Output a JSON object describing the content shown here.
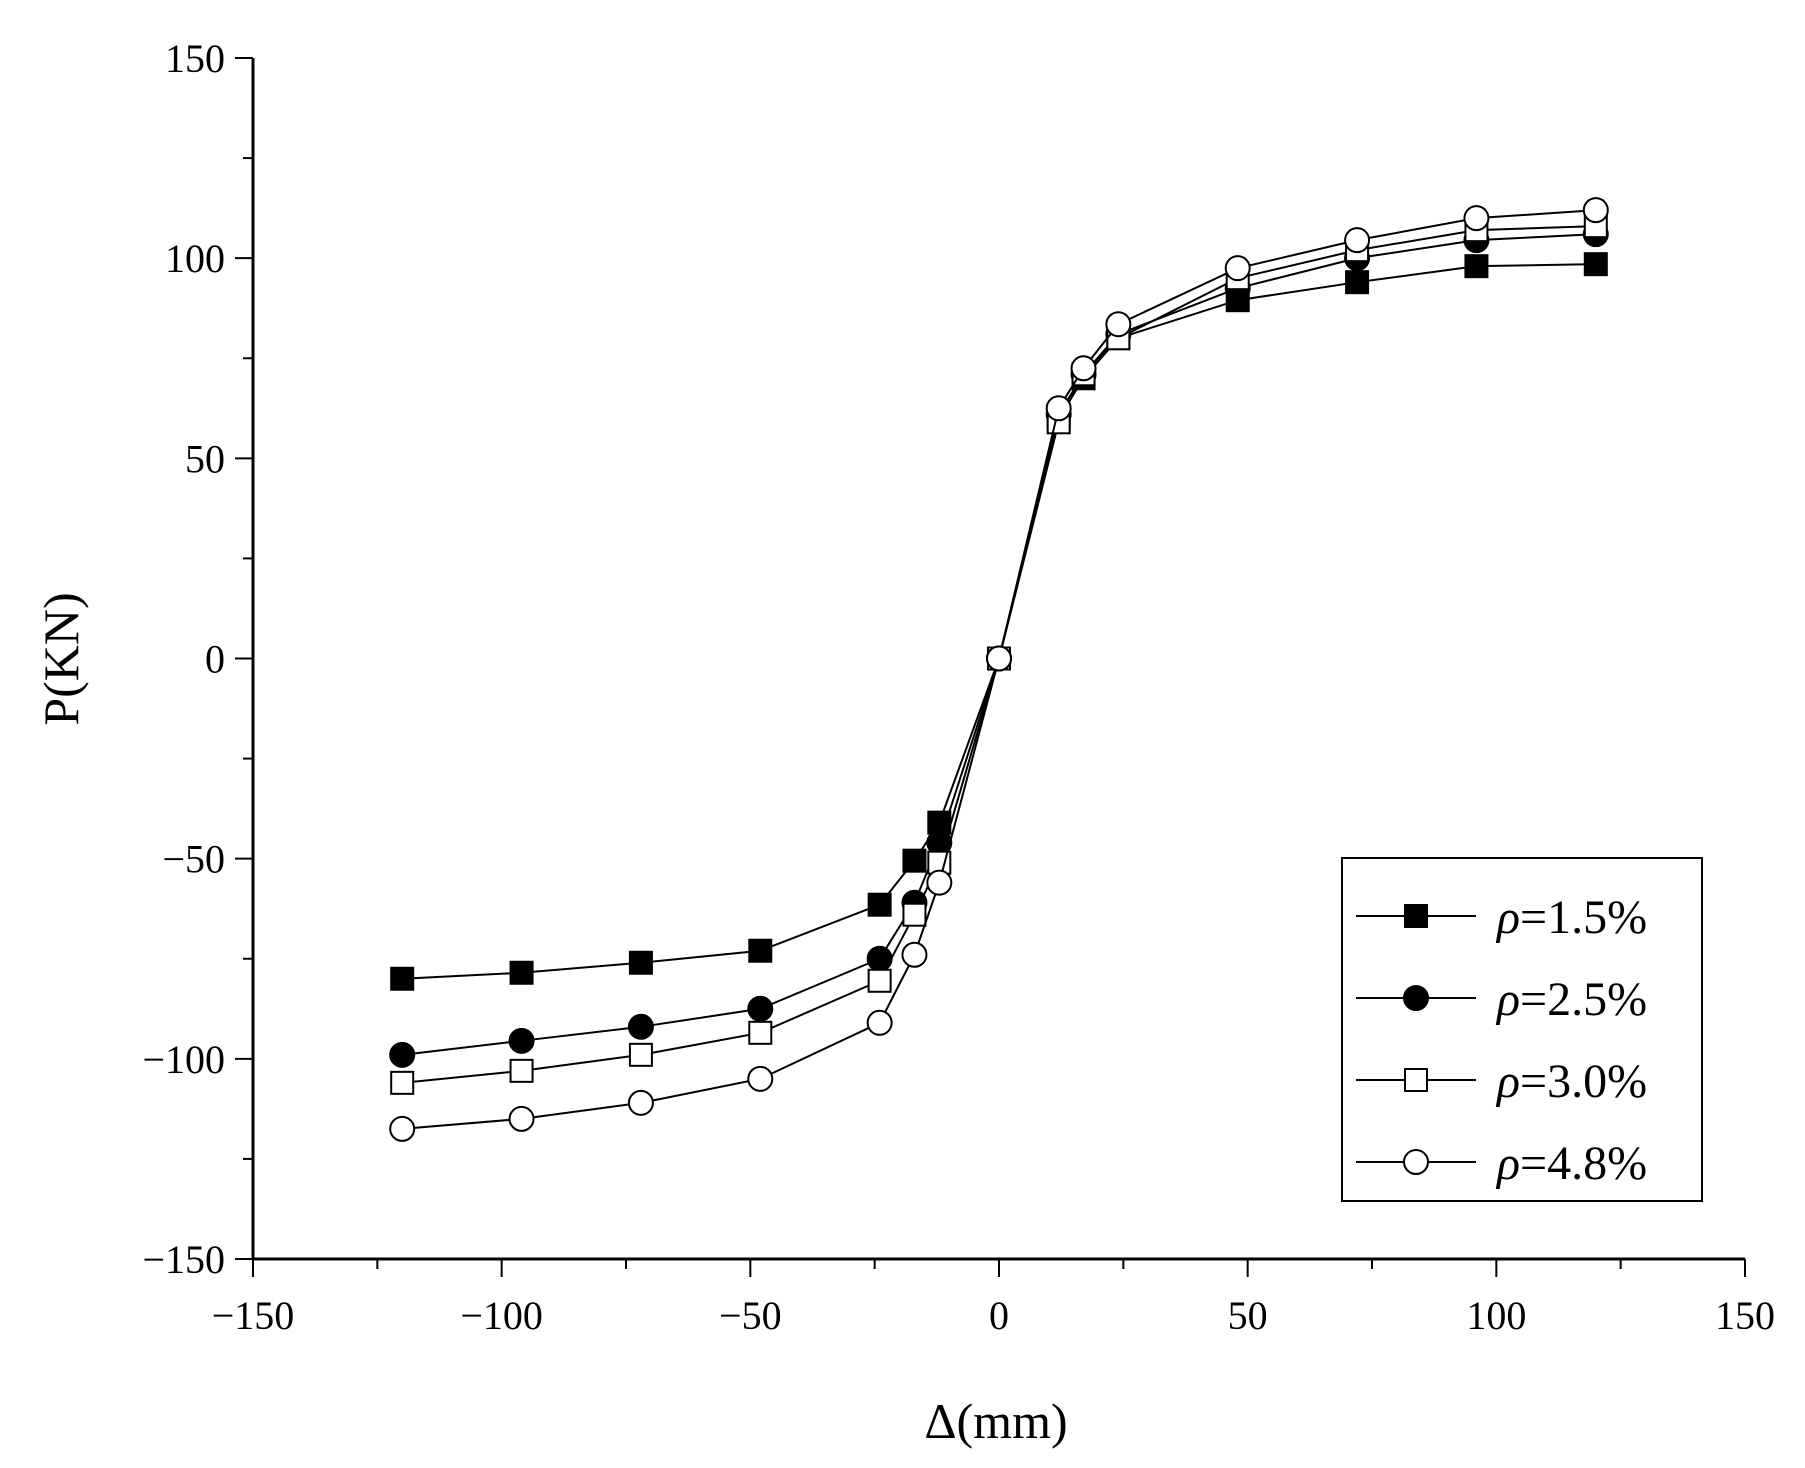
{
  "chart_data": {
    "type": "line",
    "title": "",
    "xlabel": "Δ(mm)",
    "ylabel": "P(KN)",
    "xlim": [
      -150,
      150
    ],
    "ylim": [
      -150,
      150
    ],
    "xticks": [
      -150,
      -100,
      -50,
      0,
      50,
      100,
      150
    ],
    "yticks": [
      -150,
      -100,
      -50,
      0,
      50,
      100,
      150
    ],
    "tick_labels_x": [
      "−150",
      "−100",
      "−50",
      "0",
      "50",
      "100",
      "150"
    ],
    "tick_labels_y": [
      "−150",
      "−100",
      "−50",
      "0",
      "50",
      "100",
      "150"
    ],
    "grid": false,
    "legend_position": "bottom-right",
    "series": [
      {
        "name": "ρ=1.5%",
        "label_symbol": "ρ",
        "label_value": "=1.5%",
        "marker": "filled-square",
        "color": "#000000",
        "x": [
          -120,
          -96,
          -72,
          -48,
          -24,
          -17,
          -12,
          0,
          12,
          17,
          24,
          48,
          72,
          96,
          120
        ],
        "y": [
          -80,
          -78.5,
          -76,
          -73,
          -61.5,
          -50.5,
          -41,
          0,
          60,
          70,
          80,
          89.5,
          94,
          98,
          98.5
        ]
      },
      {
        "name": "ρ=2.5%",
        "label_symbol": "ρ",
        "label_value": "=2.5%",
        "marker": "filled-circle",
        "color": "#000000",
        "x": [
          -120,
          -96,
          -72,
          -48,
          -24,
          -17,
          -12,
          0,
          12,
          17,
          24,
          48,
          72,
          96,
          120
        ],
        "y": [
          -99,
          -95.5,
          -92,
          -87.5,
          -75,
          -61,
          -46,
          0,
          61,
          71,
          81,
          92.5,
          100,
          104.5,
          106
        ]
      },
      {
        "name": "ρ=3.0%",
        "label_symbol": "ρ",
        "label_value": "=3.0%",
        "marker": "open-square",
        "color": "#000000",
        "x": [
          -120,
          -96,
          -72,
          -48,
          -24,
          -17,
          -12,
          0,
          12,
          17,
          24,
          48,
          72,
          96,
          120
        ],
        "y": [
          -106,
          -103,
          -99,
          -93.5,
          -80.5,
          -64,
          -51,
          0,
          59,
          71,
          80,
          95,
          102,
          107,
          108
        ]
      },
      {
        "name": "ρ=4.8%",
        "label_symbol": "ρ",
        "label_value": "=4.8%",
        "marker": "open-circle",
        "color": "#000000",
        "x": [
          -120,
          -96,
          -72,
          -48,
          -24,
          -17,
          -12,
          0,
          12,
          17,
          24,
          48,
          72,
          96,
          120
        ],
        "y": [
          -117.5,
          -115,
          -111,
          -105,
          -91,
          -74,
          -56,
          0,
          62.5,
          72.5,
          83.5,
          97.5,
          104.5,
          110,
          112
        ]
      }
    ]
  }
}
